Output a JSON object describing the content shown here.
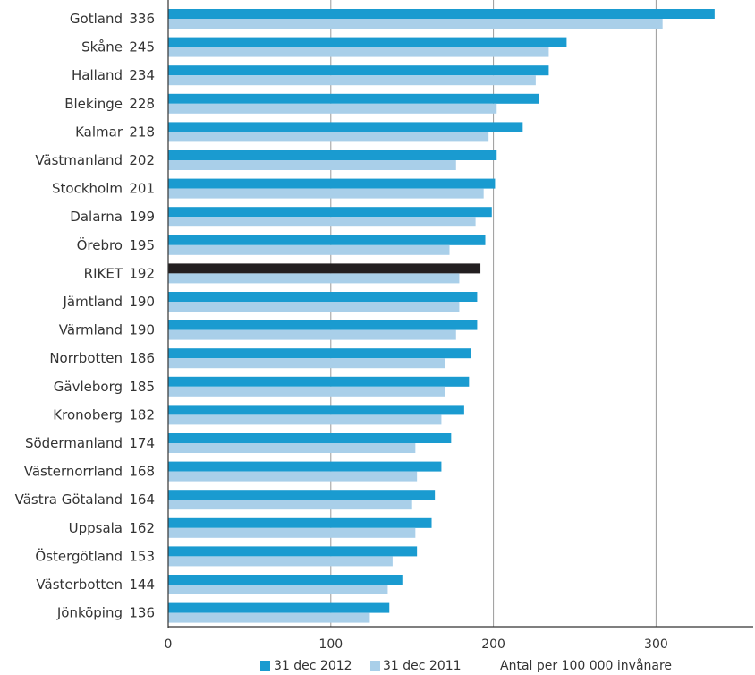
{
  "chart_data": {
    "type": "bar",
    "orientation": "horizontal",
    "categories": [
      "Gotland",
      "Skåne",
      "Halland",
      "Blekinge",
      "Kalmar",
      "Västmanland",
      "Stockholm",
      "Dalarna",
      "Örebro",
      "RIKET",
      "Jämtland",
      "Värmland",
      "Norrbotten",
      "Gävleborg",
      "Kronoberg",
      "Södermanland",
      "Västernorrland",
      "Västra Götaland",
      "Uppsala",
      "Östergötland",
      "Västerbotten",
      "Jönköping"
    ],
    "value_labels": [
      "336",
      "245",
      "234",
      "228",
      "218",
      "202",
      "201",
      "199",
      "195",
      "192",
      "190",
      "190",
      "186",
      "185",
      "182",
      "174",
      "168",
      "164",
      "162",
      "153",
      "144",
      "136"
    ],
    "series": [
      {
        "name": "31 dec 2012",
        "values": [
          336,
          245,
          234,
          228,
          218,
          202,
          201,
          199,
          195,
          192,
          190,
          190,
          186,
          185,
          182,
          174,
          168,
          164,
          162,
          153,
          144,
          136
        ]
      },
      {
        "name": "31 dec 2011",
        "values": [
          304,
          234,
          226,
          202,
          197,
          177,
          194,
          189,
          173,
          179,
          179,
          177,
          170,
          170,
          168,
          152,
          153,
          150,
          152,
          138,
          135,
          124
        ]
      }
    ],
    "highlight_category": "RIKET",
    "xlim": [
      0,
      360
    ],
    "xticks": [
      "0",
      "100",
      "200",
      "300"
    ],
    "xtick_values": [
      0,
      100,
      200,
      300
    ],
    "xlabel": "Antal per 100 000 invånare",
    "grid": true,
    "legend_position": "bottom"
  },
  "colors": {
    "series_2012": "#1a9bd0",
    "series_2011": "#a9cfe9",
    "highlight": "#231f20",
    "grid": "#9a9a9a",
    "axis": "#333333"
  }
}
